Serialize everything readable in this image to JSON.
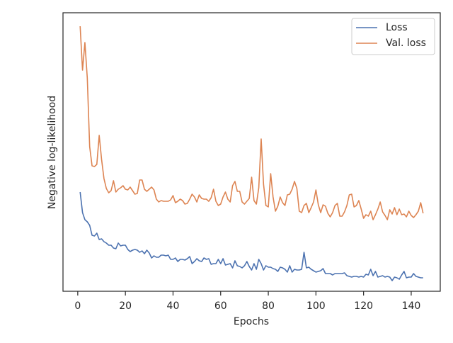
{
  "chart_data": {
    "type": "line",
    "xlabel": "Epochs",
    "ylabel": "Negative log-likelihood",
    "x": [
      1,
      2,
      3,
      4,
      5,
      6,
      7,
      8,
      9,
      10,
      11,
      12,
      13,
      14,
      15,
      16,
      17,
      18,
      19,
      20,
      21,
      22,
      23,
      24,
      25,
      26,
      27,
      28,
      29,
      30,
      31,
      32,
      33,
      34,
      35,
      36,
      37,
      38,
      39,
      40,
      41,
      42,
      43,
      44,
      45,
      46,
      47,
      48,
      49,
      50,
      51,
      52,
      53,
      54,
      55,
      56,
      57,
      58,
      59,
      60,
      61,
      62,
      63,
      64,
      65,
      66,
      67,
      68,
      69,
      70,
      71,
      72,
      73,
      74,
      75,
      76,
      77,
      78,
      79,
      80,
      81,
      82,
      83,
      84,
      85,
      86,
      87,
      88,
      89,
      90,
      91,
      92,
      93,
      94,
      95,
      96,
      97,
      98,
      99,
      100,
      101,
      102,
      103,
      104,
      105,
      106,
      107,
      108,
      109,
      110,
      111,
      112,
      113,
      114,
      115,
      116,
      117,
      118,
      119,
      120,
      121,
      122,
      123,
      124,
      125,
      126,
      127,
      128,
      129,
      130,
      131,
      132,
      133,
      134,
      135,
      136,
      137,
      138,
      139,
      140,
      141,
      142,
      143,
      144,
      145
    ],
    "series": [
      {
        "name": "Loss",
        "color": "#4c72b0",
        "values": [
          140,
          111,
          101,
          98,
          93,
          79,
          78,
          82,
          73,
          74,
          70,
          68,
          65,
          65,
          61,
          60,
          68,
          64,
          65,
          65,
          59,
          56,
          58,
          59,
          58,
          55,
          57,
          53,
          58,
          54,
          47,
          50,
          48,
          48,
          51,
          51,
          50,
          51,
          45,
          45,
          47,
          42,
          45,
          45,
          44,
          46,
          49,
          39,
          42,
          46,
          43,
          42,
          47,
          45,
          46,
          38,
          39,
          39,
          45,
          39,
          46,
          37,
          38,
          39,
          33,
          43,
          36,
          35,
          33,
          36,
          42,
          35,
          30,
          39,
          31,
          45,
          39,
          30,
          36,
          34,
          34,
          32,
          31,
          28,
          34,
          33,
          31,
          27,
          36,
          27,
          31,
          30,
          30,
          31,
          55,
          33,
          34,
          31,
          29,
          27,
          28,
          29,
          32,
          25,
          25,
          25,
          23,
          25,
          25,
          25,
          25,
          26,
          22,
          21,
          20,
          21,
          21,
          20,
          21,
          20,
          24,
          23,
          31,
          22,
          28,
          20,
          21,
          22,
          20,
          21,
          20,
          15,
          20,
          19,
          17,
          23,
          28,
          19,
          20,
          20,
          25,
          21,
          20,
          19,
          19
        ]
      },
      {
        "name": "Val. loss",
        "color": "#dd8452",
        "values": [
          374,
          312,
          351,
          301,
          204,
          177,
          176,
          179,
          220,
          186,
          159,
          145,
          139,
          142,
          156,
          140,
          144,
          146,
          149,
          144,
          143,
          147,
          142,
          137,
          138,
          157,
          157,
          144,
          141,
          144,
          147,
          143,
          130,
          126,
          128,
          127,
          127,
          127,
          129,
          135,
          125,
          127,
          130,
          128,
          123,
          124,
          130,
          137,
          133,
          126,
          136,
          131,
          130,
          130,
          127,
          132,
          144,
          127,
          121,
          123,
          133,
          140,
          130,
          126,
          149,
          155,
          141,
          141,
          126,
          123,
          127,
          131,
          161,
          128,
          123,
          146,
          215,
          151,
          121,
          119,
          166,
          133,
          113,
          120,
          133,
          125,
          121,
          136,
          137,
          144,
          155,
          145,
          113,
          111,
          121,
          124,
          111,
          118,
          126,
          143,
          122,
          111,
          122,
          120,
          110,
          105,
          111,
          121,
          124,
          106,
          106,
          112,
          121,
          136,
          137,
          119,
          121,
          128,
          116,
          103,
          108,
          106,
          113,
          101,
          108,
          116,
          126,
          112,
          107,
          101,
          115,
          109,
          118,
          108,
          116,
          108,
          109,
          105,
          113,
          107,
          104,
          108,
          113,
          125,
          110
        ]
      }
    ],
    "xlim": [
      -6.2,
      152.2
    ],
    "xticks": [
      0,
      20,
      40,
      60,
      80,
      100,
      120,
      140
    ],
    "ylim": [
      0,
      393
    ],
    "legend": "upper right"
  }
}
